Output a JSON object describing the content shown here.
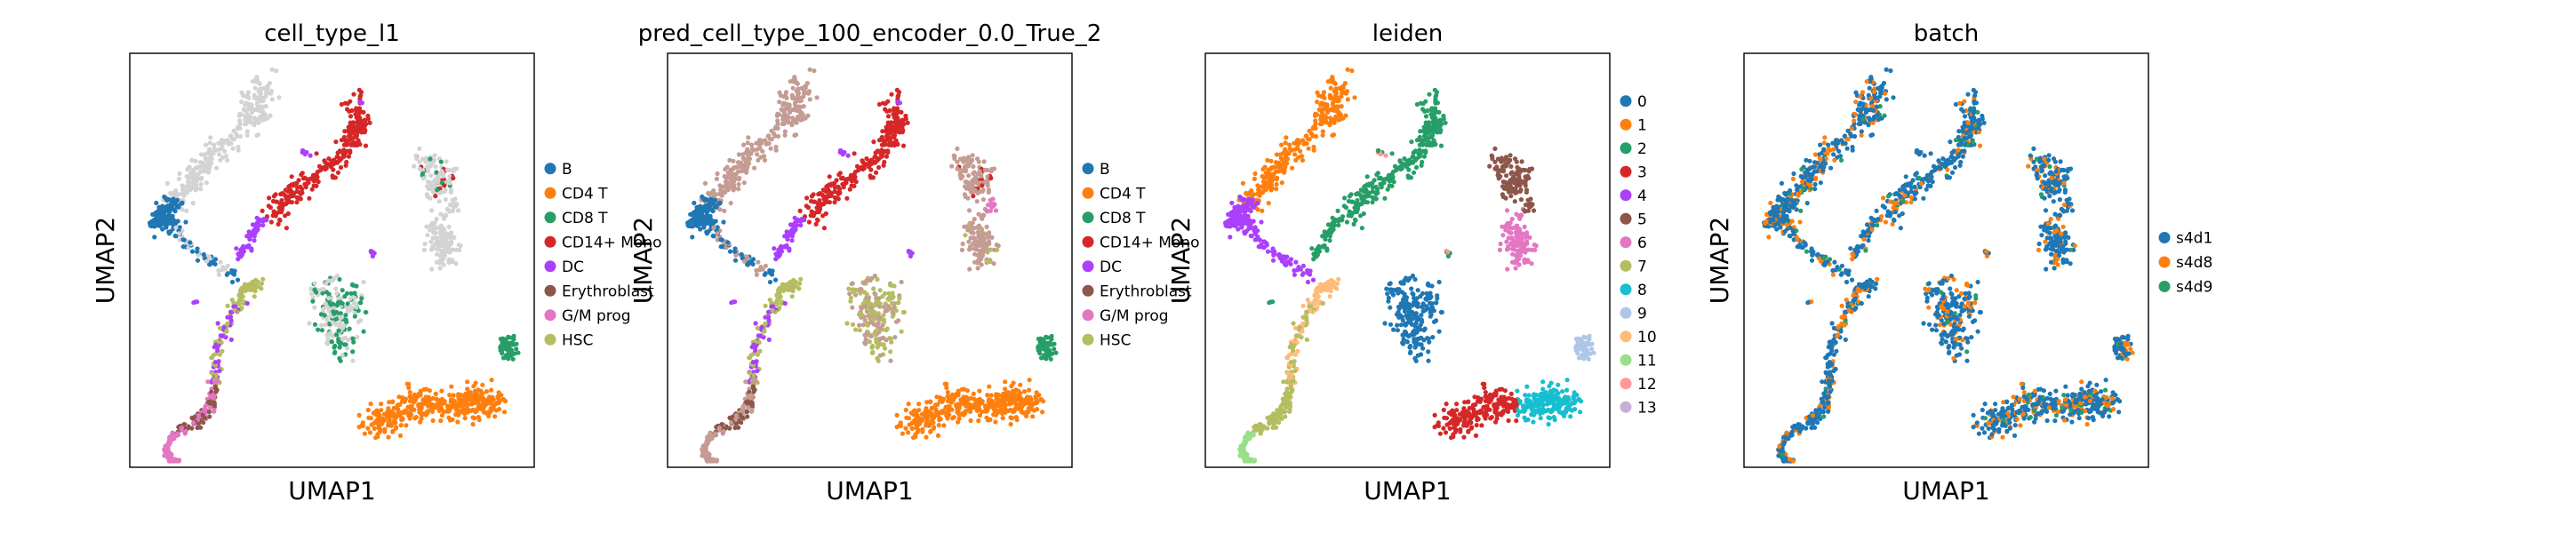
{
  "figure": {
    "background": "#ffffff"
  },
  "chart_data": [
    {
      "type": "scatter",
      "title": "cell_type_l1",
      "xlabel": "UMAP1",
      "ylabel": "UMAP2",
      "legend_title": "",
      "legend_position": "right",
      "categories": [
        "B",
        "CD4 T",
        "CD8 T",
        "CD14+ Mono",
        "DC",
        "Erythroblast",
        "G/M prog",
        "HSC"
      ],
      "colors": [
        "#1f77b4",
        "#ff7f0e",
        "#279e68",
        "#d62728",
        "#aa40fc",
        "#8c564b",
        "#e377c2",
        "#b5bd61"
      ],
      "unlabeled_color": "#d3d3d3"
    },
    {
      "type": "scatter",
      "title": "pred_cell_type_100_encoder_0.0_True_2",
      "xlabel": "UMAP1",
      "ylabel": "UMAP2",
      "legend_title": "",
      "legend_position": "right",
      "categories": [
        "B",
        "CD4 T",
        "CD8 T",
        "CD14+ Mono",
        "DC",
        "Erythroblast",
        "G/M prog",
        "HSC"
      ],
      "colors": [
        "#1f77b4",
        "#ff7f0e",
        "#279e68",
        "#d62728",
        "#aa40fc",
        "#8c564b",
        "#e377c2",
        "#b5bd61"
      ],
      "unlabeled_color": "#c49c94"
    },
    {
      "type": "scatter",
      "title": "leiden",
      "xlabel": "UMAP1",
      "ylabel": "UMAP2",
      "legend_title": "",
      "legend_position": "right",
      "categories": [
        "0",
        "1",
        "2",
        "3",
        "4",
        "5",
        "6",
        "7",
        "8",
        "9",
        "10",
        "11",
        "12",
        "13"
      ],
      "colors": [
        "#1f77b4",
        "#ff7f0e",
        "#279e68",
        "#d62728",
        "#aa40fc",
        "#8c564b",
        "#e377c2",
        "#b5bd61",
        "#17becf",
        "#aec7e8",
        "#ffbb78",
        "#98df8a",
        "#ff9896",
        "#c5b0d5"
      ]
    },
    {
      "type": "scatter",
      "title": "batch",
      "xlabel": "UMAP1",
      "ylabel": "UMAP2",
      "legend_title": "",
      "legend_position": "right",
      "categories": [
        "s4d1",
        "s4d8",
        "s4d9"
      ],
      "colors": [
        "#1f77b4",
        "#ff7f0e",
        "#279e68"
      ]
    }
  ]
}
